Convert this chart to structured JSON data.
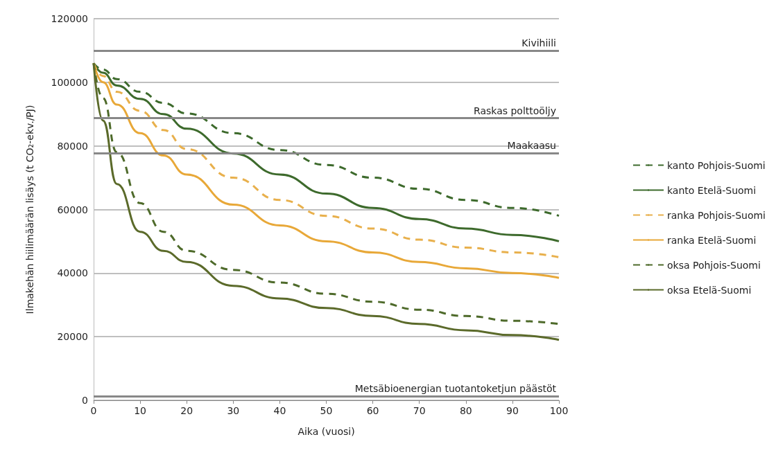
{
  "chart_data": {
    "type": "line",
    "xlabel": "Aika (vuosi)",
    "ylabel": "Ilmakehän hiilimäärän lisäys (t CO₂-ekv./PJ)",
    "x": [
      0,
      2,
      5,
      10,
      15,
      20,
      30,
      40,
      50,
      60,
      70,
      80,
      90,
      100
    ],
    "xlim": [
      0,
      100
    ],
    "xticks": [
      0,
      10,
      20,
      30,
      40,
      50,
      60,
      70,
      80,
      90,
      100
    ],
    "ylim": [
      0,
      120000
    ],
    "yticks": [
      0,
      20000,
      40000,
      60000,
      80000,
      100000,
      120000
    ],
    "grid": "y",
    "legend": "right",
    "marker": "none",
    "series": [
      {
        "name": "kanto Pohjois-Suomi",
        "color": "#3d6a2c",
        "line_style": "dashed",
        "values": [
          106000,
          104000,
          101000,
          97000,
          93500,
          90200,
          84000,
          78700,
          74000,
          70000,
          66500,
          63000,
          60500,
          58000
        ]
      },
      {
        "name": "kanto Etelä-Suomi",
        "color": "#3d6a2c",
        "line_style": "solid",
        "values": [
          106000,
          103000,
          99000,
          94800,
          90000,
          85400,
          77600,
          71000,
          65000,
          60500,
          57000,
          54000,
          52000,
          50000
        ]
      },
      {
        "name": "ranka Pohjois-Suomi",
        "color": "#e8b04c",
        "line_style": "dashed",
        "values": [
          106000,
          102000,
          97000,
          91000,
          85000,
          79000,
          70000,
          63000,
          58000,
          54000,
          50500,
          48000,
          46500,
          45000
        ]
      },
      {
        "name": "ranka Etelä-Suomi",
        "color": "#e8a838",
        "line_style": "solid",
        "values": [
          106000,
          100000,
          93000,
          84000,
          77000,
          71000,
          61500,
          55000,
          50000,
          46500,
          43500,
          41500,
          40000,
          38500
        ]
      },
      {
        "name": "oksa Pohjois-Suomi",
        "color": "#4e6a2a",
        "line_style": "dashed",
        "values": [
          106000,
          95000,
          78000,
          62000,
          53000,
          47000,
          41000,
          37000,
          33500,
          31000,
          28500,
          26500,
          25000,
          24000
        ]
      },
      {
        "name": "oksa Etelä-Suomi",
        "color": "#5b6a2a",
        "line_style": "solid",
        "values": [
          106000,
          88000,
          68000,
          53000,
          47000,
          43500,
          36000,
          32000,
          29000,
          26500,
          24000,
          22000,
          20500,
          19000
        ]
      }
    ],
    "ref_lines": [
      {
        "axis": "y",
        "value": 110000,
        "label": "Kivihiili",
        "color": "#888888"
      },
      {
        "axis": "y",
        "value": 88700,
        "label": "Raskas polttoöljy",
        "color": "#888888"
      },
      {
        "axis": "y",
        "value": 77800,
        "label": "Maakaasu",
        "color": "#888888"
      },
      {
        "axis": "y",
        "value": 1300,
        "label": "Metsäbioenergian tuotantoketjun päästöt",
        "color": "#888888"
      }
    ]
  }
}
